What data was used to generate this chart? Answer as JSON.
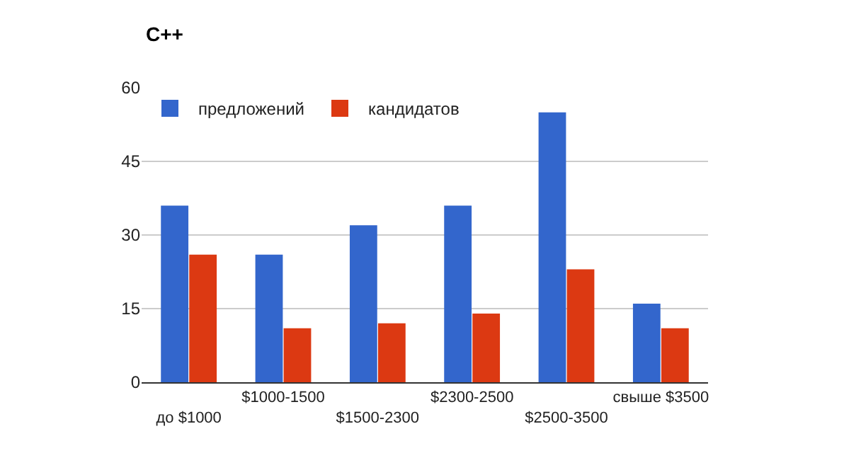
{
  "chart_data": {
    "type": "bar",
    "title": "C++",
    "categories": [
      "до $1000",
      "$1000-1500",
      "$1500-2300",
      "$2300-2500",
      "$2500-3500",
      "свыше $3500"
    ],
    "series": [
      {
        "name": "предложений",
        "color": "#3366cc",
        "values": [
          36,
          26,
          32,
          36,
          55,
          16
        ]
      },
      {
        "name": "кандидатов",
        "color": "#dc3912",
        "values": [
          26,
          11,
          12,
          14,
          23,
          11
        ]
      }
    ],
    "ylim": [
      0,
      60
    ],
    "yticks": [
      0,
      15,
      30,
      45,
      60
    ],
    "grid": "y",
    "legend": "top left"
  }
}
